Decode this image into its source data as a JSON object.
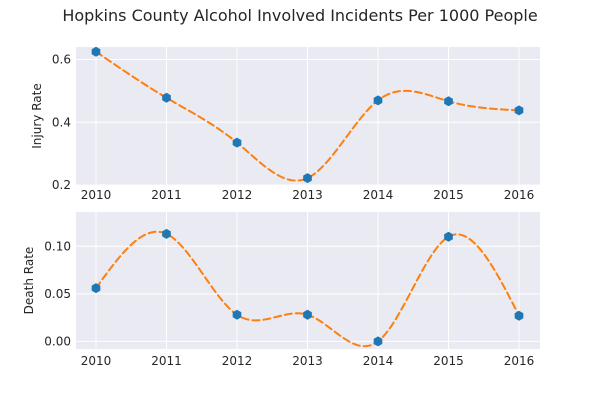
{
  "chart_data": {
    "type": "line",
    "title": "Hopkins County Alcohol Involved Incidents Per 1000 People",
    "subplots": [
      {
        "ylabel": "Injury Rate",
        "x": [
          2010,
          2011,
          2012,
          2013,
          2014,
          2015,
          2016
        ],
        "x_tick_labels": [
          "2010",
          "2011",
          "2012",
          "2013",
          "2014",
          "2015",
          "2016"
        ],
        "y": [
          0.625,
          0.478,
          0.335,
          0.222,
          0.47,
          0.467,
          0.438
        ],
        "ylim": [
          0.2,
          0.64
        ],
        "yticks": [
          0.2,
          0.4,
          0.6
        ],
        "y_tick_labels": [
          "0.2",
          "0.4",
          "0.6"
        ],
        "grid": true,
        "marker": "hexagon",
        "marker_color": "#1f77b4",
        "line": "dashed smooth interpolation",
        "line_color": "#ff7f0e"
      },
      {
        "ylabel": "Death Rate",
        "x": [
          2010,
          2011,
          2012,
          2013,
          2014,
          2015,
          2016
        ],
        "x_tick_labels": [
          "2010",
          "2011",
          "2012",
          "2013",
          "2014",
          "2015",
          "2016"
        ],
        "y": [
          0.056,
          0.113,
          0.028,
          0.028,
          0.0,
          0.11,
          0.027
        ],
        "ylim": [
          -0.008,
          0.136
        ],
        "yticks": [
          0.0,
          0.05,
          0.1
        ],
        "y_tick_labels": [
          "0.00",
          "0.05",
          "0.10"
        ],
        "grid": true,
        "marker": "hexagon",
        "marker_color": "#1f77b4",
        "line": "dashed smooth interpolation",
        "line_color": "#ff7f0e"
      }
    ]
  }
}
